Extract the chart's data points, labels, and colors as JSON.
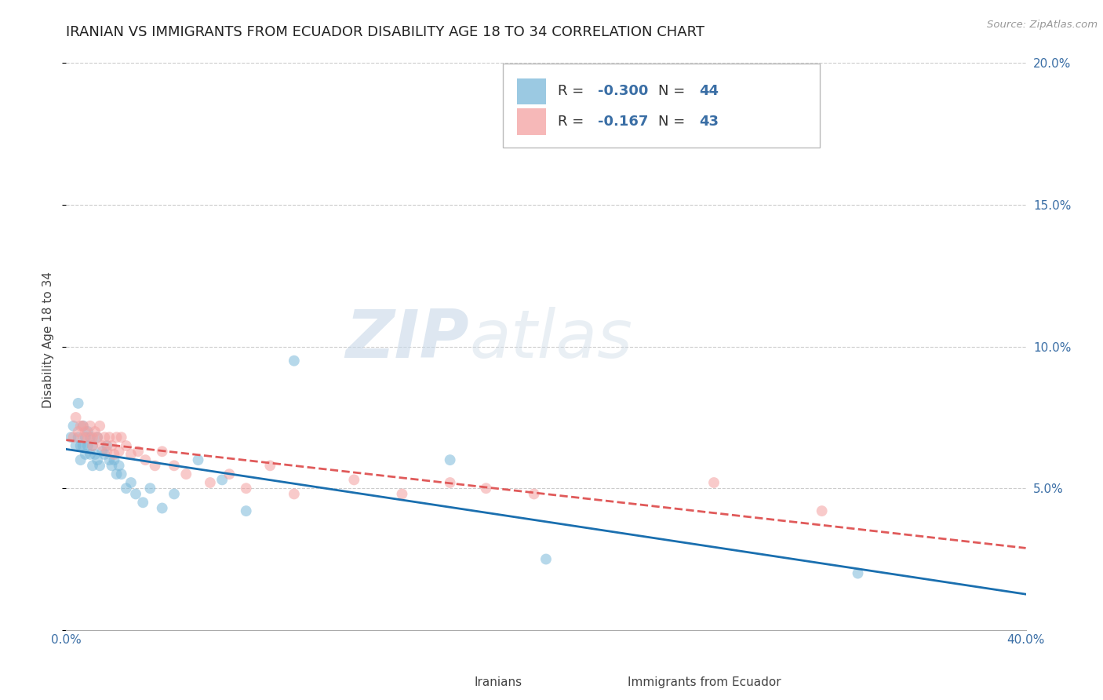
{
  "title": "IRANIAN VS IMMIGRANTS FROM ECUADOR DISABILITY AGE 18 TO 34 CORRELATION CHART",
  "source": "Source: ZipAtlas.com",
  "ylabel": "Disability Age 18 to 34",
  "xlim": [
    0.0,
    0.4
  ],
  "ylim": [
    0.0,
    0.205
  ],
  "xticks": [
    0.0,
    0.05,
    0.1,
    0.15,
    0.2,
    0.25,
    0.3,
    0.35,
    0.4
  ],
  "yticks": [
    0.0,
    0.05,
    0.1,
    0.15,
    0.2
  ],
  "iranians_x": [
    0.002,
    0.003,
    0.004,
    0.005,
    0.005,
    0.006,
    0.006,
    0.007,
    0.007,
    0.008,
    0.008,
    0.009,
    0.009,
    0.01,
    0.01,
    0.011,
    0.011,
    0.012,
    0.013,
    0.013,
    0.014,
    0.015,
    0.016,
    0.017,
    0.018,
    0.019,
    0.02,
    0.021,
    0.022,
    0.023,
    0.025,
    0.027,
    0.029,
    0.032,
    0.035,
    0.04,
    0.045,
    0.055,
    0.065,
    0.075,
    0.095,
    0.16,
    0.2,
    0.33
  ],
  "iranians_y": [
    0.068,
    0.072,
    0.065,
    0.08,
    0.068,
    0.065,
    0.06,
    0.072,
    0.065,
    0.068,
    0.062,
    0.07,
    0.065,
    0.068,
    0.062,
    0.065,
    0.058,
    0.062,
    0.068,
    0.06,
    0.058,
    0.063,
    0.062,
    0.065,
    0.06,
    0.058,
    0.06,
    0.055,
    0.058,
    0.055,
    0.05,
    0.052,
    0.048,
    0.045,
    0.05,
    0.043,
    0.048,
    0.06,
    0.053,
    0.042,
    0.095,
    0.06,
    0.025,
    0.02
  ],
  "ecuador_x": [
    0.003,
    0.004,
    0.005,
    0.006,
    0.007,
    0.007,
    0.008,
    0.009,
    0.01,
    0.011,
    0.011,
    0.012,
    0.013,
    0.014,
    0.015,
    0.016,
    0.017,
    0.018,
    0.019,
    0.02,
    0.021,
    0.022,
    0.023,
    0.025,
    0.027,
    0.03,
    0.033,
    0.037,
    0.04,
    0.045,
    0.05,
    0.06,
    0.068,
    0.075,
    0.085,
    0.095,
    0.12,
    0.14,
    0.16,
    0.175,
    0.195,
    0.27,
    0.315
  ],
  "ecuador_y": [
    0.068,
    0.075,
    0.07,
    0.072,
    0.068,
    0.072,
    0.07,
    0.068,
    0.072,
    0.068,
    0.065,
    0.07,
    0.068,
    0.072,
    0.065,
    0.068,
    0.063,
    0.068,
    0.065,
    0.062,
    0.068,
    0.063,
    0.068,
    0.065,
    0.062,
    0.063,
    0.06,
    0.058,
    0.063,
    0.058,
    0.055,
    0.052,
    0.055,
    0.05,
    0.058,
    0.048,
    0.053,
    0.048,
    0.052,
    0.05,
    0.048,
    0.052,
    0.042
  ],
  "iranian_color": "#7ab8d9",
  "ecuador_color": "#f4a0a0",
  "iranian_line_color": "#1a6faf",
  "ecuador_line_color": "#e05a5a",
  "R_iranian": -0.3,
  "N_iranian": 44,
  "R_ecuador": -0.167,
  "N_ecuador": 43,
  "watermark_zip": "ZIP",
  "watermark_atlas": "atlas",
  "background_color": "#ffffff",
  "grid_color": "#cccccc",
  "title_fontsize": 13,
  "axis_label_fontsize": 11,
  "tick_fontsize": 11,
  "legend_fontsize": 13,
  "dot_size_iranians": 100,
  "dot_size_ecuador": 100,
  "dot_alpha": 0.55
}
